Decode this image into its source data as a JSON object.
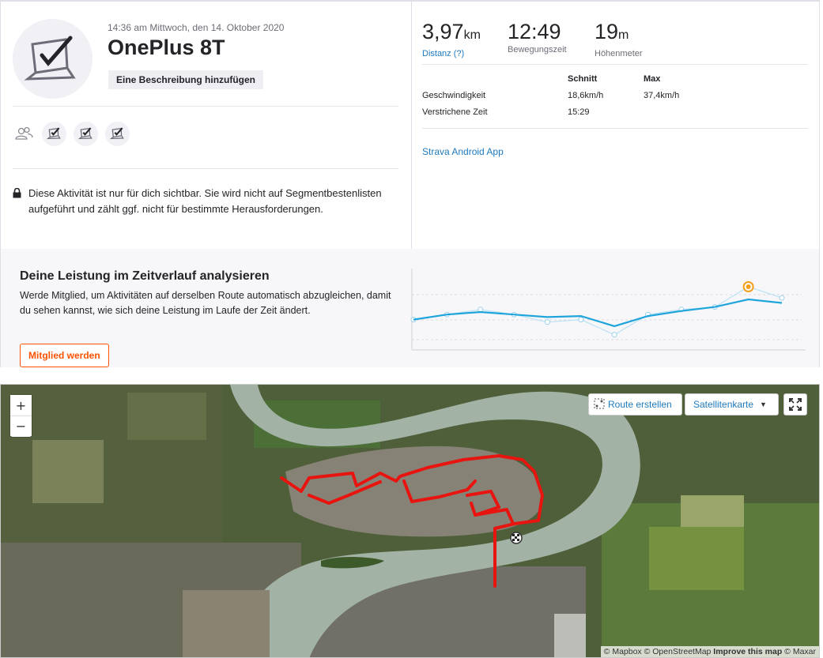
{
  "activity": {
    "datetime": "14:36 am Mittwoch, den 14. Oktober 2020",
    "title": "OnePlus 8T",
    "add_description": "Eine Beschreibung hinzufügen",
    "privacy_notice": "Diese Aktivität ist nur für dich sichtbar. Sie wird nicht auf Segmentbestenlisten aufgeführt und zählt ggf. nicht für bestimmte Herausforderungen."
  },
  "stats": {
    "distance": {
      "value": "3,97",
      "unit": "km",
      "label": "Distanz (?)"
    },
    "moving_time": {
      "value": "12:49",
      "label": "Bewegungszeit"
    },
    "elevation": {
      "value": "19",
      "unit": "m",
      "label": "Höhenmeter"
    }
  },
  "details": {
    "headers": [
      "",
      "Schnitt",
      "Max"
    ],
    "rows": [
      [
        "Geschwindigkeit",
        "18,6km/h",
        "37,4km/h"
      ],
      [
        "Verstrichene Zeit",
        "15:29",
        ""
      ]
    ]
  },
  "device_link": "Strava Android App",
  "promo": {
    "title": "Deine Leistung im Zeitverlauf analysieren",
    "text": "Werde Mitglied, um Aktivitäten auf derselben Route automatisch abzugleichen, damit du sehen kannst, wie sich deine Leistung im Laufe der Zeit ändert.",
    "button": "Mitglied werden"
  },
  "chart_data": {
    "type": "line",
    "title": "",
    "xlabel": "",
    "ylabel": "",
    "series": [
      {
        "values": [
          0,
          1,
          2,
          3,
          4,
          5,
          6,
          7,
          8,
          9,
          10,
          11
        ],
        "mask": "x-index"
      },
      {
        "values": [
          0.35,
          0.45,
          0.5,
          0.45,
          0.4,
          0.42,
          0.22,
          0.42,
          0.52,
          0.6,
          0.75,
          0.68
        ]
      }
    ],
    "highlight_index": 10,
    "faded_values": [
      0.35,
      0.45,
      0.55,
      0.45,
      0.3,
      0.35,
      0.05,
      0.45,
      0.55,
      0.6,
      1.0,
      0.78
    ],
    "grid": true,
    "accent": "#1fa5db",
    "highlight_color": "#f4a01b"
  },
  "map": {
    "route_button": "Route erstellen",
    "map_type": "Satellitenkarte",
    "zoom_in": "+",
    "zoom_out": "−",
    "attribution_prefix": "© Mapbox © OpenStreetMap ",
    "attribution_improve": "Improve this map",
    "attribution_suffix": " © Maxar",
    "route_color": "#e8140f"
  }
}
